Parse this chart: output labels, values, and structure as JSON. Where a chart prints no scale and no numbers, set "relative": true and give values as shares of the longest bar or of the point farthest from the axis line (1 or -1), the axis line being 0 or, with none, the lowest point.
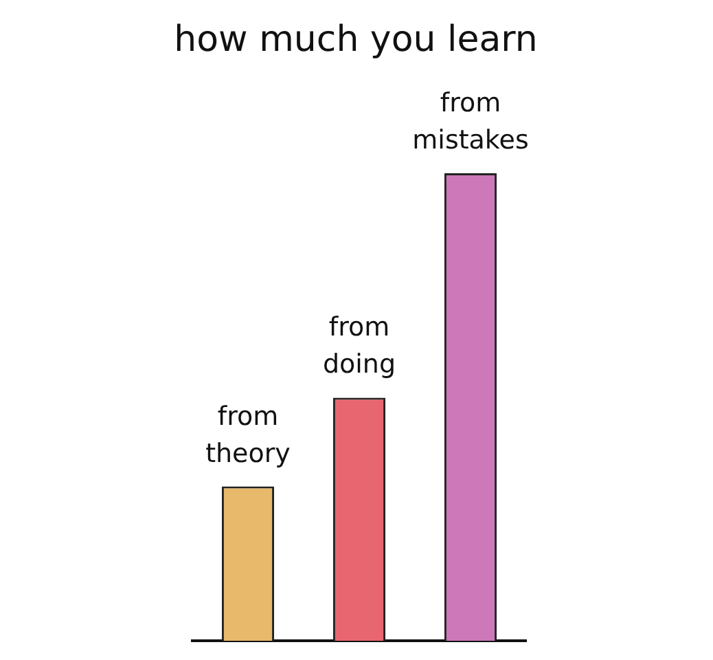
{
  "chart_data": {
    "type": "bar",
    "title": "how much you learn",
    "categories": [
      "from theory",
      "from doing",
      "from mistakes"
    ],
    "values": [
      0.33,
      0.52,
      1
    ],
    "colors": [
      "#e9b96b",
      "#e8666f",
      "#cc78b9"
    ],
    "relative": true
  }
}
